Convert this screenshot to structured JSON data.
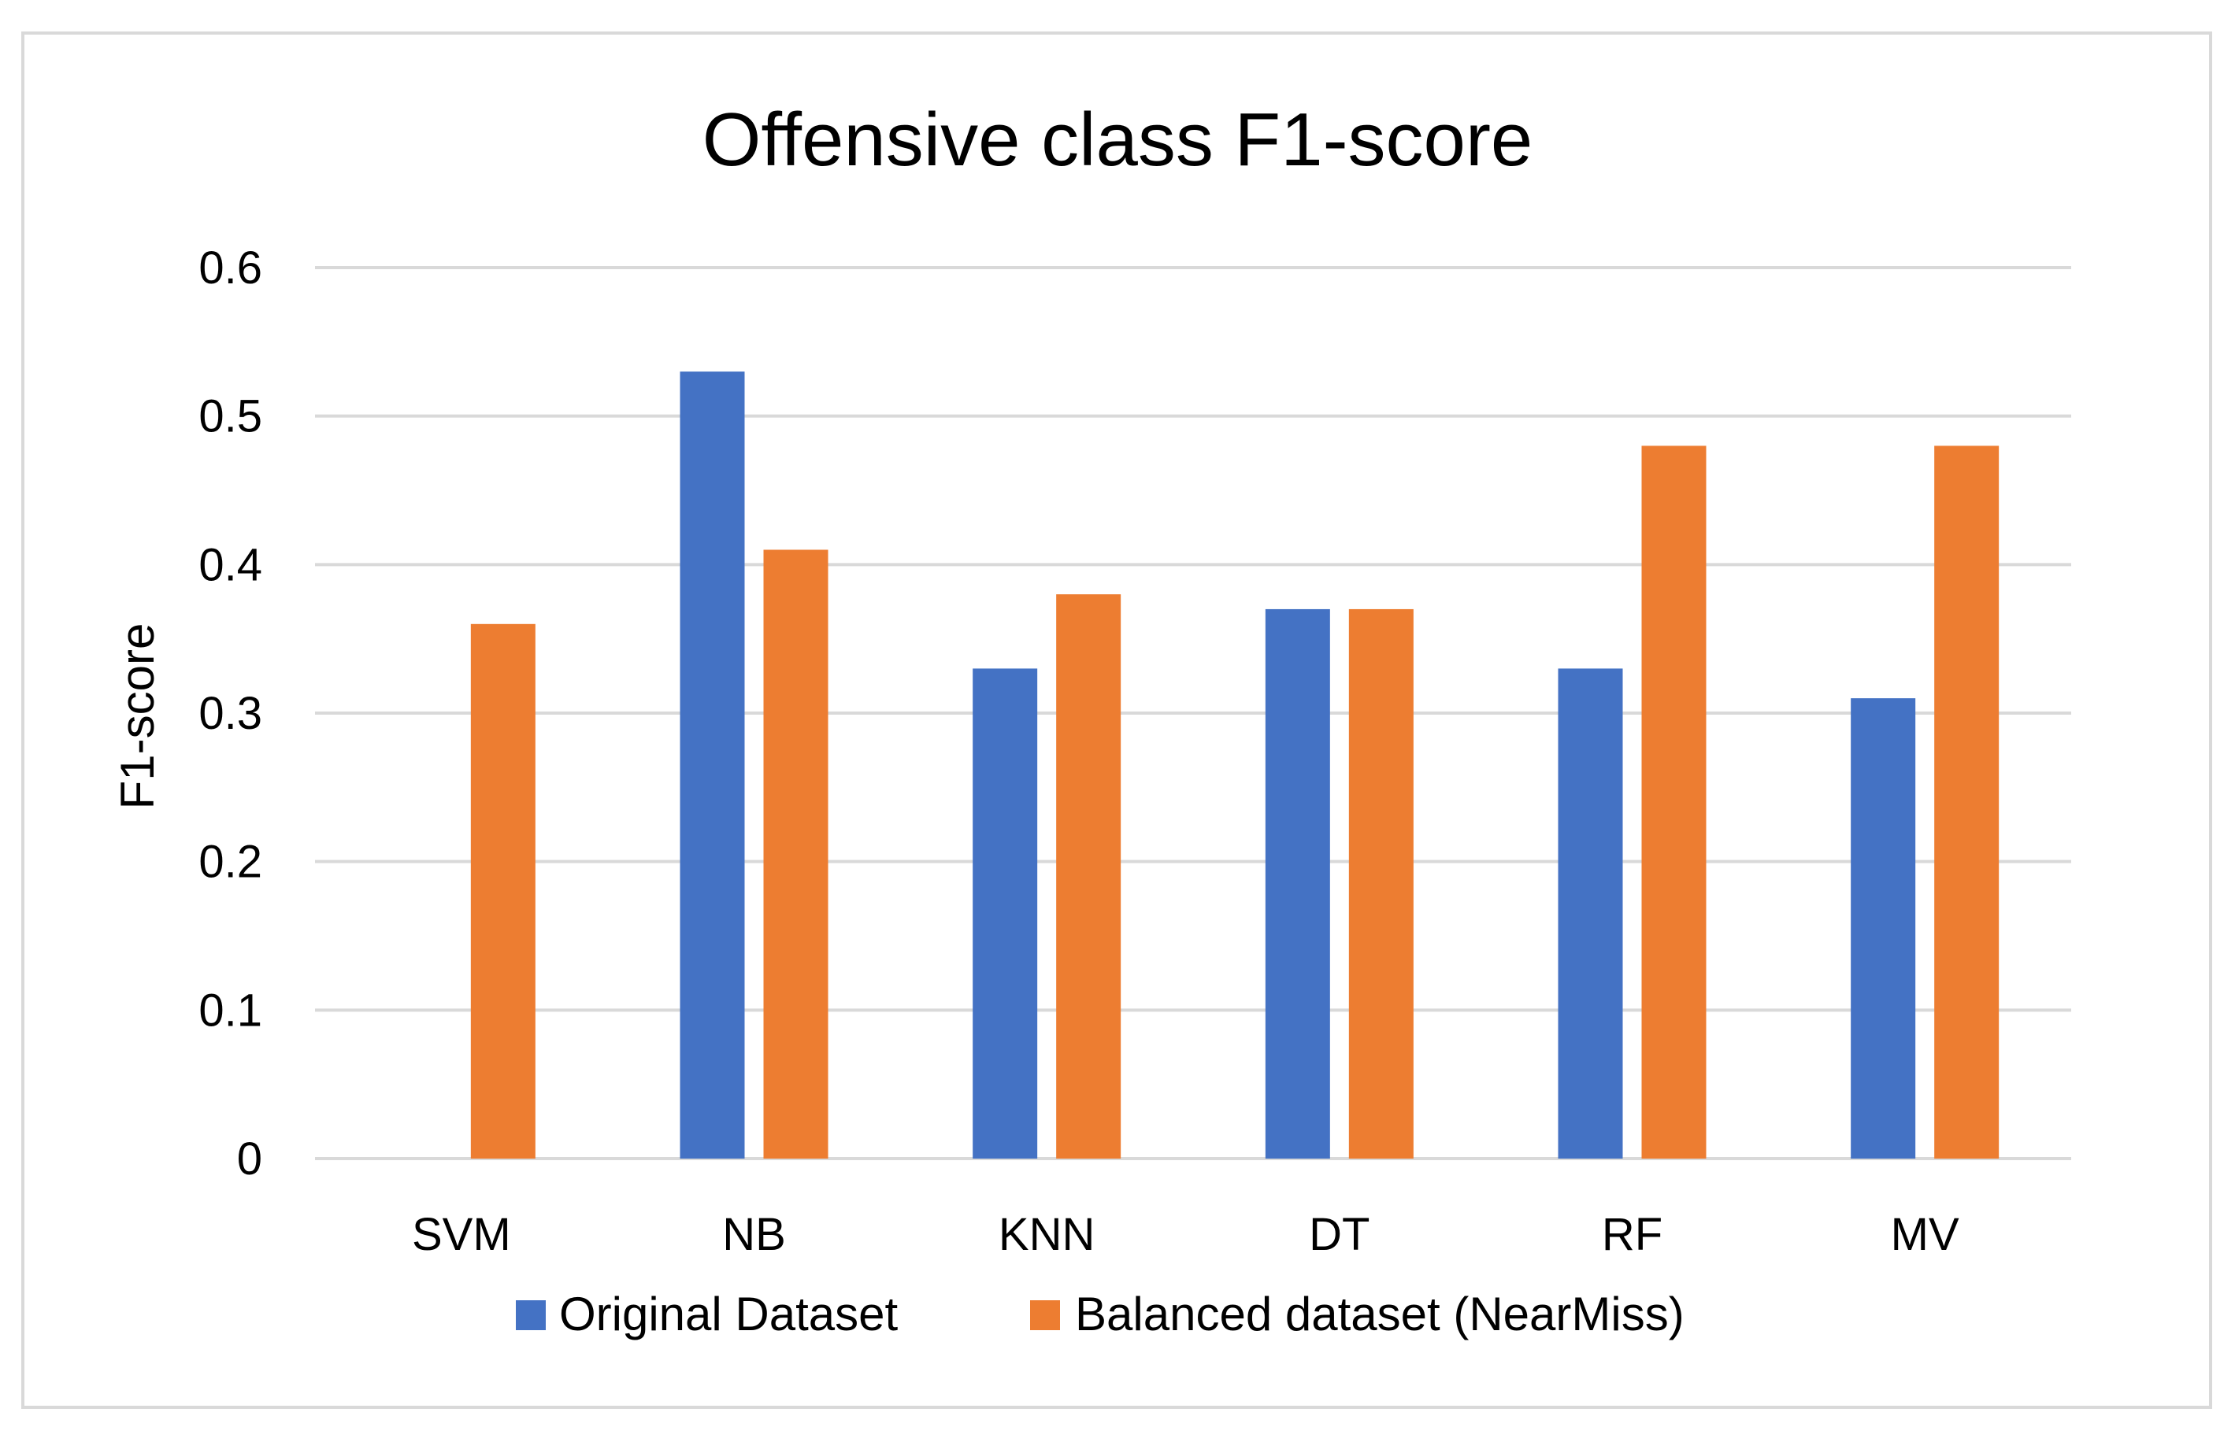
{
  "chart_data": {
    "type": "bar",
    "title": "Offensive class F1-score",
    "xlabel": "",
    "ylabel": "F1-score",
    "categories": [
      "SVM",
      "NB",
      "KNN",
      "DT",
      "RF",
      "MV"
    ],
    "ylim": [
      0,
      0.6
    ],
    "yticks": [
      0,
      0.1,
      0.2,
      0.3,
      0.4,
      0.5,
      0.6
    ],
    "ytick_labels": [
      "0",
      "0.1",
      "0.2",
      "0.3",
      "0.4",
      "0.5",
      "0.6"
    ],
    "grid": true,
    "legend_position": "bottom",
    "series": [
      {
        "name": "Original Dataset",
        "color": "#4472c4",
        "values": [
          0,
          0.53,
          0.33,
          0.37,
          0.33,
          0.31
        ]
      },
      {
        "name": "Balanced dataset (NearMiss)",
        "color": "#ed7d31",
        "values": [
          0.36,
          0.41,
          0.38,
          0.37,
          0.48,
          0.48
        ]
      }
    ]
  }
}
